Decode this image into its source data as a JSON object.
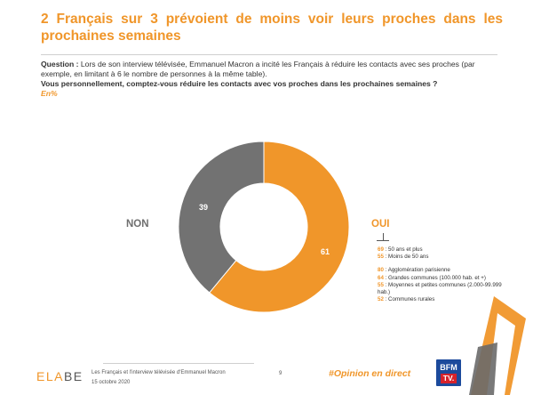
{
  "header": {
    "title": "2 Français sur 3 prévoient de moins voir leurs proches dans les prochaines semaines"
  },
  "question": {
    "label": "Question :",
    "text": " Lors de son interview télévisée, Emmanuel Macron a incité les Français à réduire les contacts avec ses proches (par exemple, en limitant à 6 le nombre de personnes à la même table).",
    "ask": "Vous personnellement, comptez-vous réduire les contacts avec vos proches dans les prochaines semaines ?",
    "unit": "En%"
  },
  "chart_data": {
    "type": "pie",
    "donut": true,
    "title": "2 Français sur 3 prévoient de moins voir leurs proches dans les prochaines semaines",
    "slices": [
      {
        "label": "OUI",
        "value": 61,
        "color": "#f0962a"
      },
      {
        "label": "NON",
        "value": 39,
        "color": "#727272"
      }
    ]
  },
  "labels": {
    "non": "NON",
    "oui": "OUI",
    "value_oui": "61",
    "value_non": "39"
  },
  "breakdown": {
    "age": [
      {
        "value": "69",
        "label": " : 50 ans et plus"
      },
      {
        "value": "55",
        "label": " : Moins de 50 ans"
      }
    ],
    "agglo": [
      {
        "value": "80",
        "label": " : Agglomération parisienne"
      },
      {
        "value": "64",
        "label": " : Grandes communes (100.000 hab. et +)"
      },
      {
        "value": "55",
        "label": " : Moyennes et petites communes (2.000-99.999 hab.)"
      },
      {
        "value": "52",
        "label": " : Communes rurales"
      }
    ]
  },
  "footer": {
    "logo_part1": "ELA",
    "logo_part2": "BE",
    "source": "Les Français et l'interview télévisée d'Emmanuel Macron",
    "date": "15 octobre 2020",
    "page": "9",
    "hashtag": "#Opinion en direct",
    "channel_top": "BFM",
    "channel_bottom": "TV."
  },
  "colors": {
    "accent": "#f0962a",
    "grey": "#727272"
  }
}
